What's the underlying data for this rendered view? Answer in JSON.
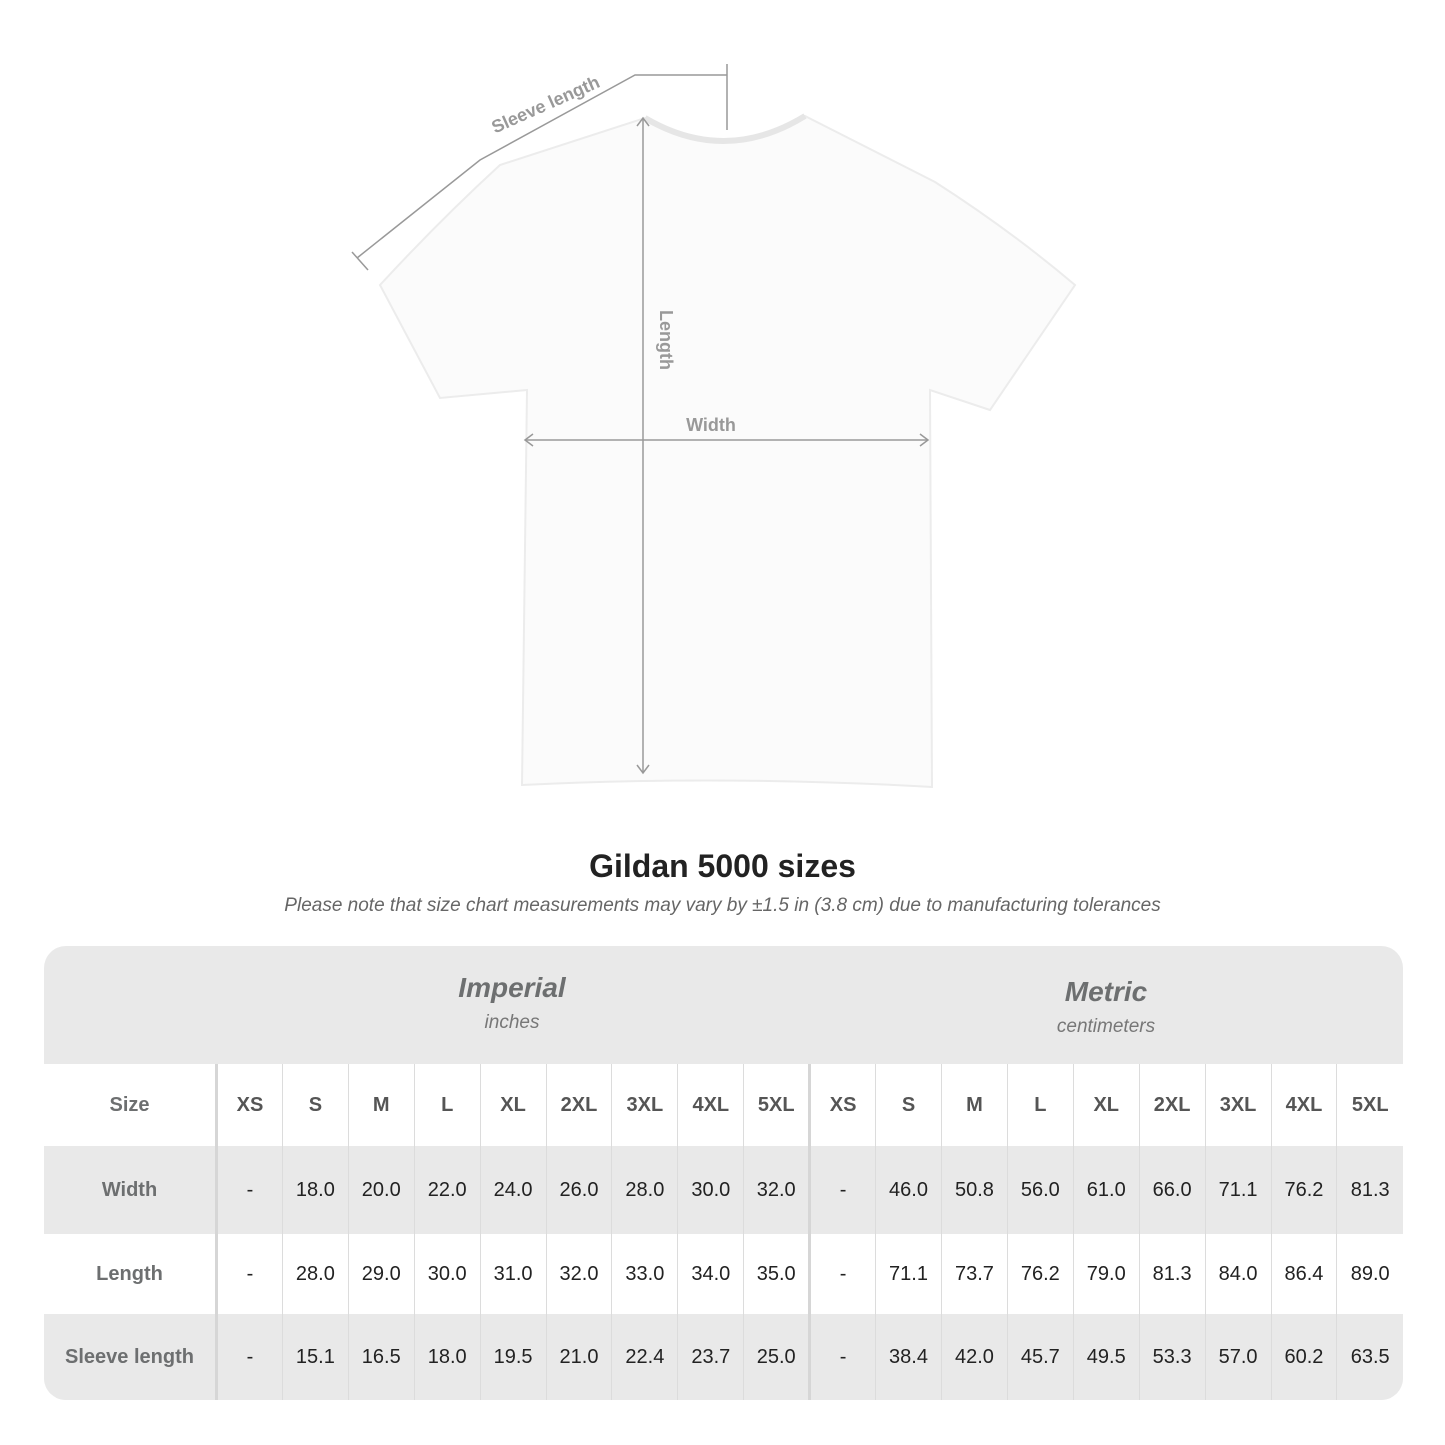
{
  "diagram": {
    "sleeve_label": "Sleeve length",
    "length_label": "Length",
    "width_label": "Width",
    "line_color": "#999999"
  },
  "title": "Gildan 5000 sizes",
  "note": "Please note that size chart measurements may vary by ±1.5 in (3.8 cm) due to manufacturing tolerances",
  "imperial": {
    "heading": "Imperial",
    "unit": "inches"
  },
  "metric": {
    "heading": "Metric",
    "unit": "centimeters"
  },
  "table": {
    "size_label": "Size",
    "sizes": [
      "XS",
      "S",
      "M",
      "L",
      "XL",
      "2XL",
      "3XL",
      "4XL",
      "5XL"
    ],
    "rows": [
      {
        "label": "Width",
        "imperial": [
          "-",
          "18.0",
          "20.0",
          "22.0",
          "24.0",
          "26.0",
          "28.0",
          "30.0",
          "32.0"
        ],
        "metric": [
          "-",
          "46.0",
          "50.8",
          "56.0",
          "61.0",
          "66.0",
          "71.1",
          "76.2",
          "81.3"
        ]
      },
      {
        "label": "Length",
        "imperial": [
          "-",
          "28.0",
          "29.0",
          "30.0",
          "31.0",
          "32.0",
          "33.0",
          "34.0",
          "35.0"
        ],
        "metric": [
          "-",
          "71.1",
          "73.7",
          "76.2",
          "79.0",
          "81.3",
          "84.0",
          "86.4",
          "89.0"
        ]
      },
      {
        "label": "Sleeve length",
        "imperial": [
          "-",
          "15.1",
          "16.5",
          "18.0",
          "19.5",
          "21.0",
          "22.4",
          "23.7",
          "25.0"
        ],
        "metric": [
          "-",
          "38.4",
          "42.0",
          "45.7",
          "49.5",
          "53.3",
          "57.0",
          "60.2",
          "63.5"
        ]
      }
    ]
  }
}
